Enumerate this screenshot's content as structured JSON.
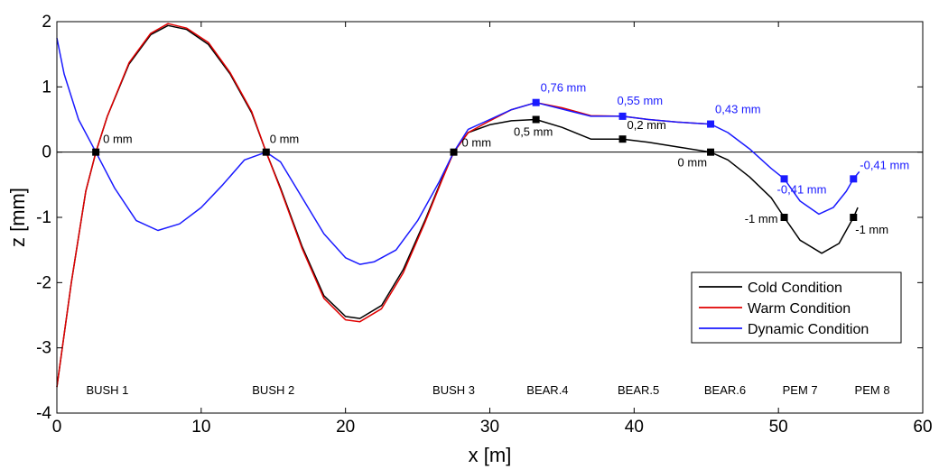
{
  "chart_data": {
    "type": "line",
    "title": "",
    "xlabel": "x [m]",
    "ylabel": "z [mm]",
    "xlim": [
      0,
      60
    ],
    "ylim": [
      -4,
      2
    ],
    "xticks": [
      0,
      10,
      20,
      30,
      40,
      50,
      60
    ],
    "yticks": [
      -4,
      -3,
      -2,
      -1,
      0,
      1,
      2
    ],
    "legend_position": "bottom-right",
    "zero_line": true,
    "series": [
      {
        "name": "Cold Condition",
        "color": "#000000",
        "points": [
          [
            0,
            -3.6
          ],
          [
            1,
            -2.0
          ],
          [
            2,
            -0.6
          ],
          [
            2.7,
            0.0
          ],
          [
            3.5,
            0.55
          ],
          [
            5,
            1.35
          ],
          [
            6.5,
            1.8
          ],
          [
            7.7,
            1.94
          ],
          [
            9,
            1.88
          ],
          [
            10.5,
            1.65
          ],
          [
            12,
            1.2
          ],
          [
            13.5,
            0.6
          ],
          [
            14.5,
            0.0
          ],
          [
            15.5,
            -0.55
          ],
          [
            17,
            -1.45
          ],
          [
            18.5,
            -2.2
          ],
          [
            20,
            -2.52
          ],
          [
            21,
            -2.55
          ],
          [
            22.5,
            -2.35
          ],
          [
            24,
            -1.8
          ],
          [
            25.5,
            -1.05
          ],
          [
            26.7,
            -0.4
          ],
          [
            27.5,
            0.0
          ],
          [
            28.5,
            0.3
          ],
          [
            30,
            0.42
          ],
          [
            31.5,
            0.48
          ],
          [
            33.2,
            0.5
          ],
          [
            35,
            0.38
          ],
          [
            37,
            0.2
          ],
          [
            39.2,
            0.2
          ],
          [
            41,
            0.15
          ],
          [
            43,
            0.08
          ],
          [
            45.3,
            0.0
          ],
          [
            46.5,
            -0.12
          ],
          [
            48,
            -0.38
          ],
          [
            49.5,
            -0.7
          ],
          [
            50.4,
            -1.0
          ],
          [
            51.5,
            -1.35
          ],
          [
            53,
            -1.55
          ],
          [
            54.2,
            -1.4
          ],
          [
            55.2,
            -1.0
          ],
          [
            55.5,
            -0.85
          ]
        ]
      },
      {
        "name": "Warm Condition",
        "color": "#e00000",
        "points": [
          [
            0,
            -3.6
          ],
          [
            1,
            -2.0
          ],
          [
            2,
            -0.6
          ],
          [
            2.7,
            0.0
          ],
          [
            3.5,
            0.55
          ],
          [
            5,
            1.37
          ],
          [
            6.5,
            1.82
          ],
          [
            7.7,
            1.97
          ],
          [
            9,
            1.9
          ],
          [
            10.5,
            1.68
          ],
          [
            12,
            1.22
          ],
          [
            13.5,
            0.62
          ],
          [
            14.5,
            0.0
          ],
          [
            15.5,
            -0.57
          ],
          [
            17,
            -1.48
          ],
          [
            18.5,
            -2.24
          ],
          [
            20,
            -2.57
          ],
          [
            21,
            -2.6
          ],
          [
            22.5,
            -2.4
          ],
          [
            24,
            -1.85
          ],
          [
            25.5,
            -1.08
          ],
          [
            26.7,
            -0.42
          ],
          [
            27.5,
            0.0
          ],
          [
            28.5,
            0.3
          ],
          [
            30,
            0.48
          ],
          [
            31.5,
            0.65
          ],
          [
            33.2,
            0.76
          ],
          [
            35,
            0.68
          ],
          [
            37,
            0.56
          ],
          [
            39.2,
            0.55
          ],
          [
            41,
            0.5
          ],
          [
            43,
            0.46
          ],
          [
            45.3,
            0.43
          ]
        ]
      },
      {
        "name": "Dynamic Condition",
        "color": "#1a1aff",
        "points": [
          [
            0,
            1.75
          ],
          [
            0.5,
            1.2
          ],
          [
            1.5,
            0.5
          ],
          [
            2.7,
            0.0
          ],
          [
            4,
            -0.55
          ],
          [
            5.5,
            -1.05
          ],
          [
            7,
            -1.2
          ],
          [
            8.5,
            -1.1
          ],
          [
            10,
            -0.85
          ],
          [
            11.5,
            -0.5
          ],
          [
            13,
            -0.12
          ],
          [
            14.5,
            0.0
          ],
          [
            15.5,
            -0.15
          ],
          [
            17,
            -0.7
          ],
          [
            18.5,
            -1.25
          ],
          [
            20,
            -1.62
          ],
          [
            21,
            -1.72
          ],
          [
            22,
            -1.68
          ],
          [
            23.5,
            -1.5
          ],
          [
            25,
            -1.05
          ],
          [
            26.5,
            -0.45
          ],
          [
            27.5,
            0.0
          ],
          [
            28.5,
            0.35
          ],
          [
            30,
            0.5
          ],
          [
            31.5,
            0.65
          ],
          [
            33.2,
            0.76
          ],
          [
            35,
            0.66
          ],
          [
            37,
            0.55
          ],
          [
            39.2,
            0.55
          ],
          [
            41,
            0.5
          ],
          [
            43,
            0.46
          ],
          [
            45.3,
            0.43
          ],
          [
            46.5,
            0.3
          ],
          [
            48,
            0.05
          ],
          [
            49.5,
            -0.25
          ],
          [
            50.4,
            -0.41
          ],
          [
            51.5,
            -0.75
          ],
          [
            52.8,
            -0.95
          ],
          [
            53.8,
            -0.85
          ],
          [
            54.7,
            -0.6
          ],
          [
            55.2,
            -0.41
          ],
          [
            55.6,
            -0.3
          ]
        ]
      }
    ],
    "markers": [
      {
        "series": "Cold Condition",
        "x": 2.7,
        "y": 0.0,
        "label": "0 mm",
        "color": "#000000"
      },
      {
        "series": "Cold Condition",
        "x": 14.5,
        "y": 0.0,
        "label": "0 mm",
        "color": "#000000"
      },
      {
        "series": "Cold Condition",
        "x": 27.5,
        "y": 0.0,
        "label": "0 mm",
        "color": "#000000"
      },
      {
        "series": "Cold Condition",
        "x": 33.2,
        "y": 0.5,
        "label": "0,5 mm",
        "color": "#000000"
      },
      {
        "series": "Cold Condition",
        "x": 39.2,
        "y": 0.2,
        "label": "0,2 mm",
        "color": "#000000"
      },
      {
        "series": "Cold Condition",
        "x": 45.3,
        "y": 0.0,
        "label": "0 mm",
        "color": "#000000"
      },
      {
        "series": "Cold Condition",
        "x": 50.4,
        "y": -1.0,
        "label": "-1 mm",
        "color": "#000000"
      },
      {
        "series": "Cold Condition",
        "x": 55.2,
        "y": -1.0,
        "label": "-1 mm",
        "color": "#000000"
      },
      {
        "series": "Dynamic Condition",
        "x": 33.2,
        "y": 0.76,
        "label": "0,76 mm",
        "color": "#1a1aff"
      },
      {
        "series": "Dynamic Condition",
        "x": 39.2,
        "y": 0.55,
        "label": "0,55 mm",
        "color": "#1a1aff"
      },
      {
        "series": "Dynamic Condition",
        "x": 45.3,
        "y": 0.43,
        "label": "0,43 mm",
        "color": "#1a1aff"
      },
      {
        "series": "Dynamic Condition",
        "x": 50.4,
        "y": -0.41,
        "label": "-0,41 mm",
        "color": "#1a1aff"
      },
      {
        "series": "Dynamic Condition",
        "x": 55.2,
        "y": -0.41,
        "label": "-0,41 mm",
        "color": "#1a1aff"
      }
    ],
    "bearing_labels": [
      {
        "x": 3.5,
        "label": "BUSH 1"
      },
      {
        "x": 15,
        "label": "BUSH 2"
      },
      {
        "x": 27.5,
        "label": "BUSH 3"
      },
      {
        "x": 34,
        "label": "BEAR.4"
      },
      {
        "x": 40.3,
        "label": "BEAR.5"
      },
      {
        "x": 46.3,
        "label": "BEAR.6"
      },
      {
        "x": 51.5,
        "label": "PEM 7"
      },
      {
        "x": 56.5,
        "label": "PEM 8"
      }
    ]
  }
}
